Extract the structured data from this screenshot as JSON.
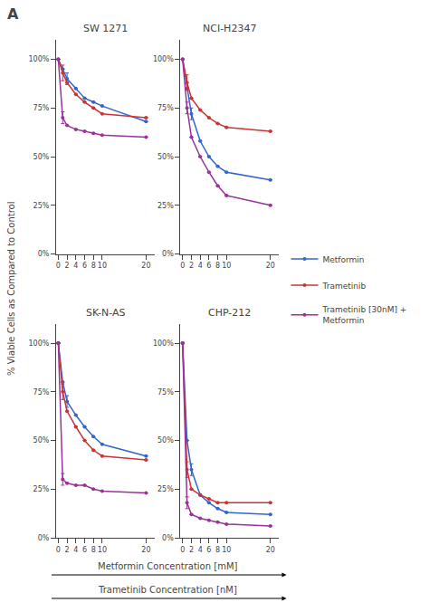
{
  "panel_label": "A",
  "ylabel": "% Viable Cells as Compared to Control",
  "xlabels": [
    "Metformin Concentration [mM]",
    "Trametinib Concentration [nM]"
  ],
  "chart_data": [
    {
      "type": "line",
      "title": "SW 1271",
      "grid": false,
      "xlim": [
        -0.5,
        22
      ],
      "xticks": [
        0,
        2,
        4,
        6,
        8,
        10,
        20
      ],
      "ylim": [
        0,
        110
      ],
      "yticks": [
        {
          "value": 0,
          "label": "0%"
        },
        {
          "value": 25,
          "label": "25%"
        },
        {
          "value": 50,
          "label": "50%"
        },
        {
          "value": 75,
          "label": "75%"
        },
        {
          "value": 100,
          "label": "100%"
        }
      ],
      "series": [
        {
          "name": "Metformin",
          "color": "#3366cc",
          "marker": "circle",
          "line_style": "solid",
          "x": [
            0,
            1,
            2,
            4,
            6,
            8,
            10,
            20
          ],
          "values": [
            100,
            95,
            90,
            85,
            80,
            78,
            76,
            68
          ],
          "errors": [
            null,
            null,
            3,
            null,
            null,
            null,
            null,
            null
          ]
        },
        {
          "name": "Trametinib",
          "color": "#cc3333",
          "marker": "circle",
          "line_style": "solid",
          "x": [
            0,
            1,
            2,
            4,
            6,
            8,
            10,
            20
          ],
          "values": [
            100,
            93,
            88,
            82,
            78,
            75,
            72,
            70
          ],
          "errors": [
            null,
            4,
            null,
            null,
            null,
            null,
            null,
            null
          ]
        },
        {
          "name": "Trametinib [30nM] +\nMetformin",
          "color": "#993399",
          "marker": "circle",
          "line_style": "solid",
          "x": [
            0,
            1,
            2,
            4,
            6,
            8,
            10,
            20
          ],
          "values": [
            100,
            70,
            66,
            64,
            63,
            62,
            61,
            60
          ],
          "errors": [
            null,
            3,
            null,
            null,
            null,
            null,
            null,
            null
          ]
        }
      ]
    },
    {
      "type": "line",
      "title": "NCI-H2347",
      "grid": false,
      "xlim": [
        -0.5,
        22
      ],
      "xticks": [
        0,
        2,
        4,
        6,
        8,
        10,
        20
      ],
      "ylim": [
        0,
        110
      ],
      "yticks": [
        {
          "value": 0,
          "label": "0%"
        },
        {
          "value": 25,
          "label": "25%"
        },
        {
          "value": 50,
          "label": "50%"
        },
        {
          "value": 75,
          "label": "75%"
        },
        {
          "value": 100,
          "label": "100%"
        }
      ],
      "series": [
        {
          "name": "Metformin",
          "color": "#3366cc",
          "marker": "circle",
          "line_style": "solid",
          "x": [
            0,
            1,
            2,
            4,
            6,
            8,
            10,
            20
          ],
          "values": [
            100,
            85,
            72,
            58,
            50,
            45,
            42,
            38
          ],
          "errors": [
            null,
            null,
            3,
            null,
            null,
            null,
            null,
            null
          ]
        },
        {
          "name": "Trametinib",
          "color": "#cc3333",
          "marker": "circle",
          "line_style": "solid",
          "x": [
            0,
            1,
            2,
            4,
            6,
            8,
            10,
            20
          ],
          "values": [
            100,
            88,
            80,
            74,
            70,
            67,
            65,
            63
          ],
          "errors": [
            null,
            4,
            null,
            null,
            null,
            null,
            null,
            null
          ]
        },
        {
          "name": "Trametinib [30nM] +\nMetformin",
          "color": "#993399",
          "marker": "circle",
          "line_style": "solid",
          "x": [
            0,
            1,
            2,
            4,
            6,
            8,
            10,
            20
          ],
          "values": [
            100,
            75,
            60,
            50,
            42,
            35,
            30,
            25
          ],
          "errors": [
            null,
            3,
            null,
            null,
            null,
            null,
            null,
            null
          ]
        }
      ]
    },
    {
      "type": "line",
      "title": "SK-N-AS",
      "grid": false,
      "xlim": [
        -0.5,
        22
      ],
      "xticks": [
        0,
        2,
        4,
        6,
        8,
        10,
        20
      ],
      "ylim": [
        0,
        110
      ],
      "yticks": [
        {
          "value": 0,
          "label": "0%"
        },
        {
          "value": 25,
          "label": "25%"
        },
        {
          "value": 50,
          "label": "50%"
        },
        {
          "value": 75,
          "label": "75%"
        },
        {
          "value": 100,
          "label": "100%"
        }
      ],
      "series": [
        {
          "name": "Metformin",
          "color": "#3366cc",
          "marker": "circle",
          "line_style": "solid",
          "x": [
            0,
            1,
            2,
            4,
            6,
            8,
            10,
            20
          ],
          "values": [
            100,
            80,
            70,
            63,
            57,
            52,
            48,
            42
          ],
          "errors": [
            null,
            null,
            3,
            null,
            null,
            null,
            null,
            null
          ]
        },
        {
          "name": "Trametinib",
          "color": "#cc3333",
          "marker": "circle",
          "line_style": "solid",
          "x": [
            0,
            1,
            2,
            4,
            6,
            8,
            10,
            20
          ],
          "values": [
            100,
            75,
            65,
            57,
            50,
            45,
            42,
            40
          ],
          "errors": [
            null,
            4,
            null,
            null,
            null,
            null,
            null,
            null
          ]
        },
        {
          "name": "Trametinib [30nM] +\nMetformin",
          "color": "#993399",
          "marker": "circle",
          "line_style": "solid",
          "x": [
            0,
            1,
            2,
            4,
            6,
            8,
            10,
            20
          ],
          "values": [
            100,
            30,
            28,
            27,
            27,
            25,
            24,
            23
          ],
          "errors": [
            null,
            3,
            null,
            null,
            null,
            null,
            null,
            null
          ]
        }
      ]
    },
    {
      "type": "line",
      "title": "CHP-212",
      "grid": false,
      "xlim": [
        -0.5,
        22
      ],
      "xticks": [
        0,
        2,
        4,
        6,
        8,
        10,
        20
      ],
      "ylim": [
        0,
        110
      ],
      "yticks": [
        {
          "value": 0,
          "label": "0%"
        },
        {
          "value": 25,
          "label": "25%"
        },
        {
          "value": 50,
          "label": "50%"
        },
        {
          "value": 75,
          "label": "75%"
        },
        {
          "value": 100,
          "label": "100%"
        }
      ],
      "series": [
        {
          "name": "Metformin",
          "color": "#3366cc",
          "marker": "circle",
          "line_style": "solid",
          "x": [
            0,
            1,
            2,
            4,
            6,
            8,
            10,
            20
          ],
          "values": [
            100,
            50,
            35,
            22,
            18,
            15,
            13,
            12
          ],
          "errors": [
            null,
            null,
            3,
            null,
            null,
            null,
            null,
            null
          ]
        },
        {
          "name": "Trametinib",
          "color": "#cc3333",
          "marker": "circle",
          "line_style": "solid",
          "x": [
            0,
            1,
            2,
            4,
            6,
            8,
            10,
            20
          ],
          "values": [
            100,
            35,
            25,
            22,
            20,
            18,
            18,
            18
          ],
          "errors": [
            null,
            4,
            null,
            null,
            null,
            null,
            null,
            null
          ]
        },
        {
          "name": "Trametinib [30nM] +\nMetformin",
          "color": "#993399",
          "marker": "circle",
          "line_style": "solid",
          "x": [
            0,
            1,
            2,
            4,
            6,
            8,
            10,
            20
          ],
          "values": [
            100,
            18,
            12,
            10,
            9,
            8,
            7,
            6
          ],
          "errors": [
            null,
            3,
            null,
            null,
            null,
            null,
            null,
            null
          ]
        }
      ]
    }
  ]
}
